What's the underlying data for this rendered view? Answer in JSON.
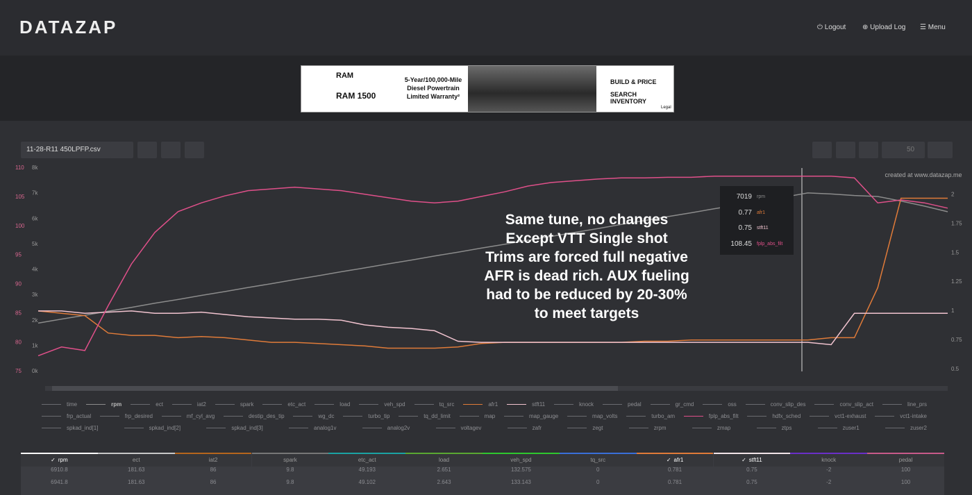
{
  "header": {
    "logo": "DATAZAP",
    "nav": [
      "Logout",
      "Upload Log",
      "Menu"
    ]
  },
  "ad": {
    "brand": "RAM",
    "model": "RAM 1500",
    "offer": [
      "5-Year/100,000-Mile",
      "Diesel Powertrain",
      "Limited Warranty²"
    ],
    "actions": [
      "BUILD & PRICE",
      "SEARCH INVENTORY"
    ],
    "legal": "Legal"
  },
  "toolbar": {
    "file": "11-28-R11 450LPFP.csv",
    "speed": "50"
  },
  "chart_data": {
    "type": "line",
    "watermark": "created at www.datazap.me",
    "annotation": [
      "Same tune, no changes",
      "Except VTT Single shot",
      "Trims are forced full negative",
      "AFR is dead rich. AUX fueling",
      "had to be reduced by 20-30%",
      "to meet targets"
    ],
    "ylim": [
      75,
      110
    ],
    "yticks": [
      75,
      80,
      85,
      90,
      95,
      100,
      105,
      110
    ],
    "ytick_color": "#d9668f",
    "y3lim": [
      0,
      8000
    ],
    "y3ticks": [
      {
        "value": 0,
        "label": "0k"
      },
      {
        "value": 1000,
        "label": "1k"
      },
      {
        "value": 2000,
        "label": "2k"
      },
      {
        "value": 3000,
        "label": "3k"
      },
      {
        "value": 4000,
        "label": "4k"
      },
      {
        "value": 5000,
        "label": "5k"
      },
      {
        "value": 6000,
        "label": "6k"
      },
      {
        "value": 7000,
        "label": "7k"
      },
      {
        "value": 8000,
        "label": "8k"
      }
    ],
    "y2lim": [
      0.48,
      2.23
    ],
    "y2ticks": [
      0.5,
      0.75,
      1,
      1.25,
      1.5,
      1.75,
      2
    ],
    "grid": false,
    "series": [
      {
        "name": "rpm",
        "color": "#8c8c8c",
        "axis": "y3",
        "values": [
          1900,
          2060,
          2210,
          2370,
          2520,
          2680,
          2830,
          2990,
          3140,
          3300,
          3450,
          3610,
          3760,
          3920,
          4070,
          4230,
          4380,
          4540,
          4690,
          4850,
          5000,
          5160,
          5310,
          5470,
          5620,
          5780,
          5930,
          6090,
          6240,
          6400,
          6550,
          6710,
          6860,
          7020,
          6980,
          6920,
          6880,
          6700,
          6500,
          6280
        ]
      },
      {
        "name": "afr1",
        "color": "#e07b39",
        "axis": "y2",
        "values": [
          1.0,
          0.98,
          0.96,
          0.81,
          0.79,
          0.79,
          0.77,
          0.78,
          0.77,
          0.75,
          0.73,
          0.73,
          0.72,
          0.71,
          0.7,
          0.68,
          0.68,
          0.68,
          0.69,
          0.72,
          0.73,
          0.73,
          0.73,
          0.73,
          0.73,
          0.73,
          0.74,
          0.74,
          0.75,
          0.75,
          0.75,
          0.75,
          0.75,
          0.75,
          0.77,
          0.77,
          1.2,
          1.97,
          1.97,
          1.97
        ]
      },
      {
        "name": "stft11",
        "color": "#f2c4d0",
        "axis": "y2",
        "values": [
          1.0,
          1.0,
          0.98,
          0.99,
          1.0,
          0.98,
          0.98,
          0.99,
          0.97,
          0.95,
          0.94,
          0.93,
          0.93,
          0.92,
          0.88,
          0.86,
          0.85,
          0.83,
          0.74,
          0.73,
          0.73,
          0.73,
          0.73,
          0.73,
          0.73,
          0.73,
          0.73,
          0.73,
          0.73,
          0.73,
          0.73,
          0.73,
          0.73,
          0.73,
          0.71,
          0.98,
          0.98,
          0.98,
          0.98,
          0.98
        ]
      },
      {
        "name": "fplp_abs_filt",
        "color": "#e0508a",
        "axis": "y",
        "values": [
          77.7,
          79.2,
          78.6,
          86.3,
          93.5,
          98.9,
          102.5,
          104.0,
          105.2,
          106.1,
          106.4,
          106.7,
          106.4,
          106.1,
          105.5,
          104.9,
          104.3,
          104.0,
          104.3,
          105.1,
          105.9,
          106.9,
          107.5,
          107.8,
          108.1,
          108.3,
          108.3,
          108.4,
          108.4,
          108.6,
          108.6,
          108.6,
          108.6,
          108.6,
          108.6,
          108.3,
          104.0,
          104.5,
          104.0,
          103.1
        ]
      }
    ],
    "cursor": {
      "values": [
        7019,
        0.77,
        0.75,
        108.45
      ]
    }
  },
  "legend": {
    "rows": [
      [
        "time",
        "rpm",
        "ect",
        "iat2",
        "spark",
        "etc_act",
        "load",
        "veh_spd",
        "tq_src",
        "afr1",
        "stft11",
        "knock",
        "pedal",
        "gr_cmd",
        "oss",
        "conv_slip_des",
        "conv_slip_act",
        "line_prs"
      ],
      [
        "frp_actual",
        "frp_desired",
        "mf_cyl_avg",
        "destip_des_tip",
        "wg_dc",
        "turbo_tip",
        "tq_dd_limit",
        "map",
        "map_gauge",
        "map_volts",
        "turbo_am",
        "fplp_abs_filt",
        "hdfx_sched",
        "vct1-exhaust",
        "vct1-intake"
      ],
      [
        "spkad_ind[1]",
        "spkad_ind[2]",
        "spkad_ind[3]",
        "analog1v",
        "analog2v",
        "voltagev",
        "zafr",
        "zegt",
        "zrpm",
        "zmap",
        "ztps",
        "zuser1",
        "zuser2"
      ]
    ]
  },
  "table": {
    "columns": [
      "rpm",
      "ect",
      "iat2",
      "spark",
      "etc_act",
      "load",
      "veh_spd",
      "tq_src",
      "afr1",
      "stft11",
      "knock",
      "pedal"
    ],
    "checked": [
      true,
      false,
      false,
      false,
      false,
      false,
      false,
      false,
      true,
      true,
      false,
      false
    ],
    "column_colors": [
      "#ffffff",
      "#c8c8c8",
      "#b5651d",
      "#777777",
      "#1aa3a3",
      "#5aa832",
      "#2ec82e",
      "#3a6fd8",
      "#e07b39",
      "#f2e4e8",
      "#6a2fc8",
      "#c85a8a"
    ],
    "rows": [
      [
        6910.8,
        181.63,
        86,
        9.8,
        49.193,
        2.651,
        132.575,
        0,
        0.781,
        0.75,
        -2,
        100
      ],
      [
        6941.8,
        181.63,
        86,
        9.8,
        49.102,
        2.643,
        133.143,
        0,
        0.781,
        0.75,
        -2,
        100
      ]
    ]
  }
}
